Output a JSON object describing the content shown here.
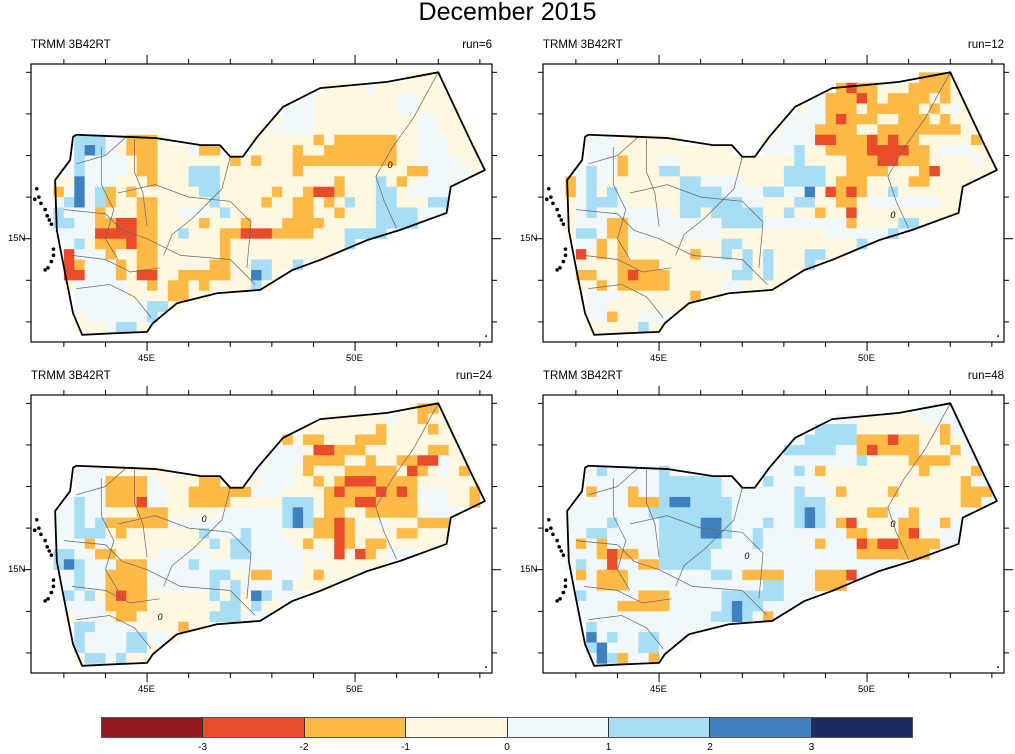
{
  "title": "December 2015",
  "class_colors": [
    "#931a1d",
    "#e84c2b",
    "#ffb946",
    "#fef8e1",
    "#f1f8fc",
    "#a7ddf5",
    "#3f80c0",
    "#1a2b5f"
  ],
  "colorbar": {
    "tick_labels": [
      "-3",
      "-2",
      "-1",
      "0",
      "1",
      "2",
      "3"
    ]
  },
  "axes": {
    "lat_label": "15N",
    "lon_labels": [
      "45E",
      "50E"
    ],
    "lon_major": [
      45,
      50
    ],
    "lat_major": [
      15
    ]
  },
  "grid": {
    "lon_start": 42.5,
    "lat_top": 19.0,
    "cell_deg": 0.25,
    "cols": 43,
    "rows": 26
  },
  "panels": [
    {
      "left_label": "TRMM 3B42RT",
      "right_label": "run=6",
      "default_class": 3,
      "contour_labels": [
        {
          "text": "0",
          "lon": 50.84,
          "lat": 16.77
        }
      ],
      "rows": [
        "",
        "31:4",
        "23-25:4 34-35:4",
        "23-25:4 34-35:4",
        "23-25:4 36-37:4",
        "22-25:4 36-37:4",
        "3-5:5 6-7:4 8-10:2 26:2 28-33:2 36-38:4",
        "3:5 4:6 5:5 6:4 8-10:2 14:4 15-16:2 24:2 27-33:2 36-38:4",
        "3:5 4-7:4 9-10:2 18:2 20:2 24-33:2 36-39:4",
        "2:4 3:5 4-7:4 9-10:2 14-16:5 24:2 35-36:2 37-40:4",
        "3:6 4-6:4 10:2 14-16:5 28:2 32:5 34:2 36-40:4",
        "1:2 2:4 3:6 4:4 5:5 6:2 8:2 15-16:5 22:2 25:2 26-27:1 28:2 32-33:5 35-39:4",
        "1:4 2:5 3:6 4:4 5:5 6:2 9-10:2 16:5 21:2 24-25:2 27:2 29:5 32-33:5 37-38:5",
        "1:5 2-4:4 5:2 9-10:2 13-15:4 17:5 24-25:2 28:2 32-35:5 36-39:4",
        "1-2:5 3-4:4 5-6:2 7-8:1 9-10:2 15:2 19:2 23-26:2 32-35:5",
        "1-4:4 5-8:1 9-10:2 13:5 17-18:2 19-21:1 22-25:2 29-33:5",
        "1-2:4 3:5 5-7:2 8:1 9-10:2 17:2 29-30:5",
        "2:1 3-5:4 6:2 9-10:2 17:2",
        "2:1 3:2 4-6:4 7:2 9-10:2 16-17:2 20-21:5 24-25:5",
        "2-3:1 4-6:4 7:2 9-10:1 13-17:2 20:6 21:5",
        "3-7:4 10:2 12-13:2 15:2 20:5",
        "3-7:4 12-13:2",
        "3-9:4 10-11:5",
        "4-9:4 10-11:5",
        "6:4 7-8:5",
        ""
      ]
    },
    {
      "left_label": "TRMM 3B42RT",
      "right_label": "run=12",
      "default_class": 3,
      "contour_labels": [
        {
          "text": "0",
          "lon": 50.62,
          "lat": 15.57
        }
      ],
      "rows": [
        "35-37:2",
        "26-27:2 28:1 29-30:2 34-37:2",
        "24-25:4 26-28:2 29:1 30:2 32-35:2 37:2",
        "24-25:4 26-28:2 30-34:2 36:2 38:4",
        "22-25:4 26:2 27:1 28-30:2 33-35:2 37:2",
        "22-24:4 25-28:2 31-35:2 36-38:2",
        "3-5:4 21-24:4 25-26:1 27-29:2 30:1 31:2 32:1 33-34:2 40:2",
        "2-5:4 20-22:4 23:5 26-29:2 30-33:1 34-35:2 37-39:4",
        "2-5:4 6:2 10-11:4 23:5 28-30:2 31-32:1 33-35:2 40:4",
        "2:4 3:5 4-5:4 6:2 10-11:5 22-25:5 28-31:2 35:2 36:1",
        "1:2 2:4 3:5 4:4 12-13:5 14-17:4 22-25:5 27-29:2 34-35:2",
        "1:2 2:4 3:5 5:5 12-15:5 16-19:4 20-21:5 22-23:4 24:6 26:1 27:2 28:1 29:2 32:5",
        "2:4 3-5:5 6:4 12-17:5 18-19:4 23-24:5 27-28:2 30-36:4",
        "2:4 3:5 4-10:4 12-13:5 15-19:5 22:5 25:2 28:1",
        "2-4:4 5-6:2 7-15:4 16-19:5 20-27:4 28:2 33-34:5",
        "2-3:5 4:4 5-6:2 7-15:4 26-31:4 32-33:5",
        "2-3:4 4:2 6:2 16-17:5 29:5",
        "2:1 4:2 6:2 13:2 16:5 18:5 20:5 24-25:5",
        "6-9:2 14-17:4 18:5 20:5 24-25:5",
        "2-3:2 6:2 7:1 8-10:2 17-18:5 20:5 23-24:5",
        "4:2 6-10:2 16-17:4",
        "3-5:4 13:2",
        "3-4:4",
        "3-4:4 5:2 8-10:4",
        "8:5",
        ""
      ]
    },
    {
      "left_label": "TRMM 3B42RT",
      "right_label": "run=24",
      "default_class": 3,
      "contour_labels": [
        {
          "text": "0",
          "lon": 46.37,
          "lat": 16.22
        },
        {
          "text": "0",
          "lon": 45.31,
          "lat": 13.86
        }
      ],
      "rows": [
        "36-37:2",
        "33:4 36:2",
        "32:2 37:2",
        "21-22:4 23:2 25-26:2 30-32:2",
        "21-24:4 26-27:1 28-30:2 37-38:2",
        "21-24:4 25-28:2 31:2 34-35:2 36-37:1 38:4",
        "3-5:4 20-23:4 25:2 29-33:2 35:1 36:2 38:4 40:2",
        "3-5:4 6-9:2 10:4 15-16:2 21-23:4 26:2 28:2 29-31:1 32-35:2",
        "2-5:4 6-9:2 10-11:4 14-19:2 20-22:4 27:2 28:1 29-31:2 32:1 33:2 34:1 35:2 36-38:4 41:2",
        "2:4 3:5 4-5:4 6-8:2 9:1 10-11:4 14-17:2 23-25:5 27-29:2 30-31:1 32-35:2 36-38:4 41:2",
        "1-2:4 3:5 4-5:4 9-11:2 17-22:4 23:5 24:6 25:5 27-28:2 31-35:2 37-39:4",
        "1-2:4 3:5 4:4 5:5 6-11:2 12-22:4 23:5 24:6 25:5 26-27:2 28:1 29:2 32:4 36-38:2",
        "1-2:4 3-5:5 7:2 15:5 16-18:4 19:5 20-22:4 26-27:2 28:1 29:2 34-35:2",
        "1-3:4 4:2 5-6:4 16:5 18-19:5 20-23:4 25:2 28:1 29:2 31-32:2",
        "1-2:5 3-4:4 5-6:2 11-15:4 18-19:5 20-24:4 26:4 28:1 30:1 31:2 33-35:4",
        "1:5 2:6 3:5 4-6:4 7-9:2 10-13:4 14:5 15-24:4",
        "1-2:4 3:5 4-5:4 6-9:2 10-15:4 16-17:5 20-21:2 22-24:4 26:2",
        "1-2:4 3:5 4-5:4 6-9:2 10-15:4 16:5 17:4 18:5 19-22:4 23:5",
        "2:5 3:4 4:5 6:2 7:1 8-9:2 16:5 18:5 20:6 21:5 22-24:4",
        "2-5:4 6-9:2 17-18:5 20:5",
        "3-5:4 7-8:2 16-18:5 19-21:4",
        "2:4 3-4:5 5-8:4 13:2",
        "3:5 4-7:4 8-9:5 10-11:4",
        "3:5 4-7:4 8-9:5",
        "4-5:5 6:4 7:5",
        ""
      ]
    },
    {
      "left_label": "TRMM 3B42RT",
      "right_label": "run=48",
      "default_class": 4,
      "contour_labels": [
        {
          "text": "0",
          "lon": 47.11,
          "lat": 15.33
        },
        {
          "text": "0",
          "lon": 50.62,
          "lat": 16.1
        }
      ],
      "rows": [
        "",
        "29-34:3",
        "24-28:5 29-36:3 37:2",
        "23:4 24-28:5 29-31:2 32:1 33-34:2 35-36:3 37:2 38:3",
        "22-26:5 29:2 30:1 31-34:2 35-37:3 38:2",
        "29:5 30-33:3 34-37:2 38-39:3",
        "4:5 10:5 23:5 25:2 26-34:3 35:2 36-39:3 40:2",
        "10-15:5 20:5 26-38:3 39:2",
        "3:2 7:2 10-15:5 23:5 27:2 28-31:3 32:2 33-38:3 39-41:2",
        "7-9:2 10:5 11-12:6 13-16:5 23-25:5 26-38:3 39-40:2",
        "9:5 10-16:5 23:5 24:6 25:5 27-29:3 30-31:2 34:2 35-38:3",
        "5:5 10-13:5 14-15:6 16:5 20:5 23:5 24:6 25:5 27:2 28:1 29-32:3 33-34:2 37:2",
        "3-4:5 10-13:5 14-15:6 16:5 19:5 28-29:2 30-32:3 33:2 34:1 35-36:3",
        "2:2 4:2 10-15:5 19:5 25:2 29:1 30:2 31-32:1 33-36:2",
        "4:2 5:1 6-7:2 10-14:5 29-36:2",
        "2:5 5:1 8-9:2 10-14:5",
        "2:2 4-6:2 15-16:5 18-19:2 20-21:2 25-27:2 28:1",
        "4-6:2 20-21:5 25-27:2",
        "2:5 8-10:2 16-19:5 20-21:5",
        "6-7:2 8-10:2 16:5 17:6 18-19:5",
        "15-16:5 17:6 18:5 20:2",
        "3:5",
        "3:6 5:5 8-9:5",
        "3:5 4:6 8-9:5",
        "4:6 5:5 6:2 9:2",
        ""
      ]
    }
  ]
}
